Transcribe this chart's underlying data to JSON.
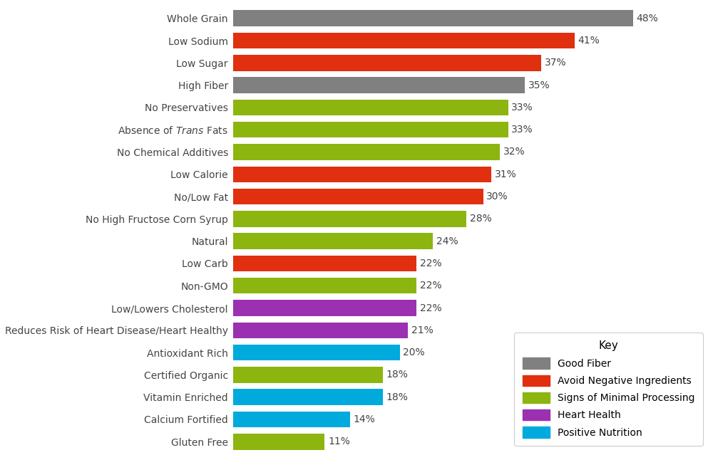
{
  "categories": [
    "Whole Grain",
    "Low Sodium",
    "Low Sugar",
    "High Fiber",
    "No Preservatives",
    "Absence of Trans Fats",
    "No Chemical Additives",
    "Low Calorie",
    "No/Low Fat",
    "No High Fructose Corn Syrup",
    "Natural",
    "Low Carb",
    "Non-GMO",
    "Low/Lowers Cholesterol",
    "Reduces Risk of Heart Disease/Heart Healthy",
    "Antioxidant Rich",
    "Certified Organic",
    "Vitamin Enriched",
    "Calcium Fortified",
    "Gluten Free"
  ],
  "values": [
    48,
    41,
    37,
    35,
    33,
    33,
    32,
    31,
    30,
    28,
    24,
    22,
    22,
    22,
    21,
    20,
    18,
    18,
    14,
    11
  ],
  "colors": [
    "#808080",
    "#e03010",
    "#e03010",
    "#808080",
    "#8db510",
    "#8db510",
    "#8db510",
    "#e03010",
    "#e03010",
    "#8db510",
    "#8db510",
    "#e03010",
    "#8db510",
    "#9b30b0",
    "#9b30b0",
    "#00aadd",
    "#8db510",
    "#00aadd",
    "#00aadd",
    "#8db510"
  ],
  "legend_labels": [
    "Good Fiber",
    "Avoid Negative Ingredients",
    "Signs of Minimal Processing",
    "Heart Health",
    "Positive Nutrition"
  ],
  "legend_colors": [
    "#808080",
    "#e03010",
    "#8db510",
    "#9b30b0",
    "#00aadd"
  ],
  "background_color": "#ffffff",
  "xlim": [
    0,
    57
  ],
  "bar_height": 0.72,
  "value_label_fontsize": 10,
  "tick_label_fontsize": 10
}
